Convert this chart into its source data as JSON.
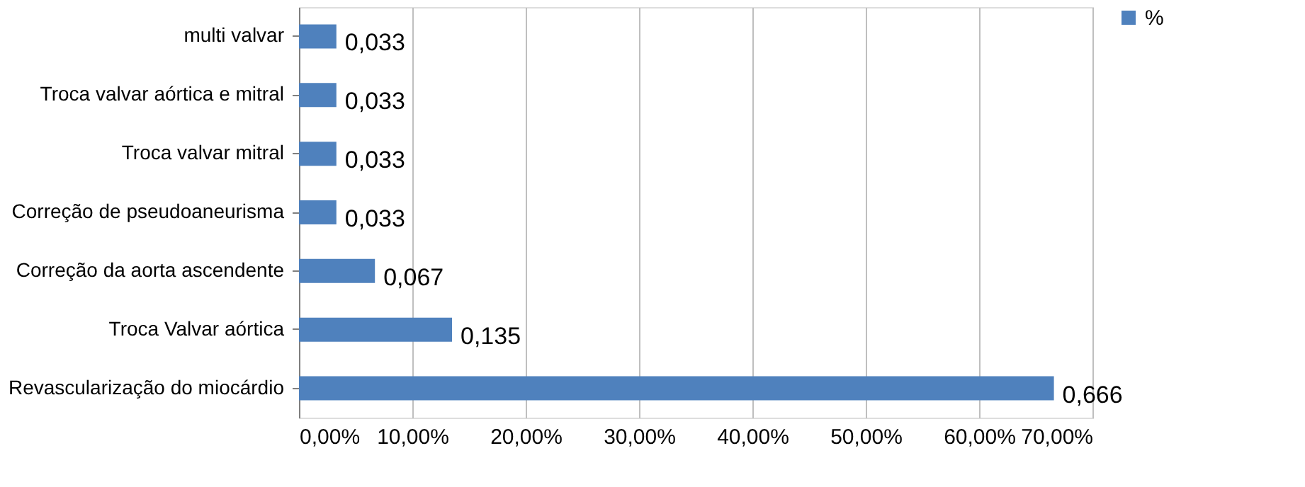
{
  "chart_data": {
    "type": "bar",
    "orientation": "horizontal",
    "categories": [
      "multi valvar",
      "Troca valvar aórtica e mitral",
      "Troca valvar mitral",
      "Correção de pseudoaneurisma",
      "Correção da aorta ascendente",
      "Troca Valvar aórtica",
      "Revascularização do miocárdio"
    ],
    "series": [
      {
        "name": "%",
        "color": "#4f81bd",
        "values": [
          0.033,
          0.033,
          0.033,
          0.033,
          0.067,
          0.135,
          0.666
        ]
      }
    ],
    "value_labels": [
      "0,033",
      "0,033",
      "0,033",
      "0,033",
      "0,067",
      "0,135",
      "0,666"
    ],
    "xlim": [
      0,
      0.7
    ],
    "xticks": [
      {
        "value": 0,
        "label": "0,00%"
      },
      {
        "value": 0.1,
        "label": "10,00%"
      },
      {
        "value": 0.2,
        "label": "20,00%"
      },
      {
        "value": 0.3,
        "label": "30,00%"
      },
      {
        "value": 0.4,
        "label": "40,00%"
      },
      {
        "value": 0.5,
        "label": "50,00%"
      },
      {
        "value": 0.6,
        "label": "60,00%"
      },
      {
        "value": 0.7,
        "label": "70,00%"
      }
    ],
    "grid": "x",
    "legend": "right"
  }
}
